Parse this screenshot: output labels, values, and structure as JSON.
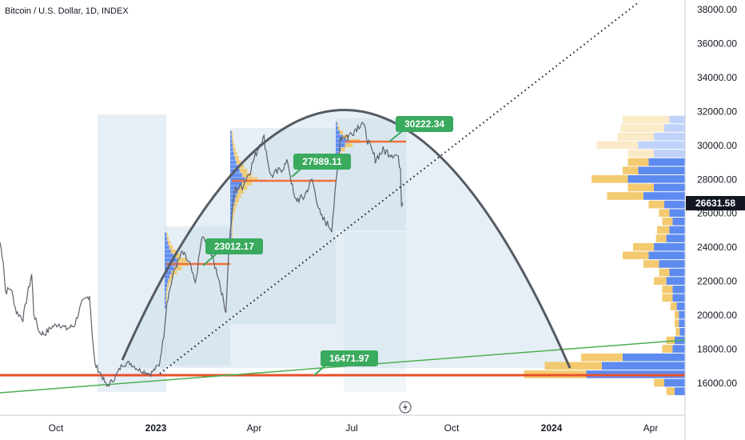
{
  "header": {
    "title": "Bitcoin / U.S. Dollar, 1D, INDEX"
  },
  "colors": {
    "candle": "#5d606b",
    "vp_up": "#f2c45f",
    "vp_down": "#4c7ef0",
    "poc": "#f0703a",
    "callout": "#3aaa5e",
    "trendline": "#4caf50",
    "support": "#e8512a",
    "arc": "#555b63",
    "region": "#c8dce8",
    "price_tag": "#131722"
  },
  "chart_data": {
    "type": "line",
    "title": "Bitcoin / U.S. Dollar, 1D, INDEX",
    "xlabel": "",
    "ylabel": "",
    "x_ticks": [
      "Oct",
      "2023",
      "Apr",
      "Jul",
      "Oct",
      "2024",
      "Apr"
    ],
    "y_ticks": [
      16000,
      18000,
      20000,
      22000,
      24000,
      26000,
      28000,
      30000,
      32000,
      34000,
      36000,
      38000
    ],
    "y_tick_labels": [
      "16000.00",
      "18000.00",
      "20000.00",
      "22000.00",
      "24000.00",
      "26000.00",
      "28000.00",
      "30000.00",
      "32000.00",
      "34000.00",
      "36000.00",
      "38000.00"
    ],
    "ylim": [
      14500,
      38400
    ],
    "current_price": 26631.58,
    "current_price_label": "26631.58",
    "grid": false,
    "series": [
      {
        "values": [
          [
            "2022-08-15",
            24300
          ],
          [
            "2022-08-18",
            23200
          ],
          [
            "2022-08-20",
            21400
          ],
          [
            "2022-08-25",
            21600
          ],
          [
            "2022-08-30",
            20200
          ],
          [
            "2022-09-05",
            19800
          ],
          [
            "2022-09-10",
            21500
          ],
          [
            "2022-09-13",
            22400
          ],
          [
            "2022-09-15",
            20100
          ],
          [
            "2022-09-20",
            19000
          ],
          [
            "2022-09-25",
            18900
          ],
          [
            "2022-10-01",
            19300
          ],
          [
            "2022-10-08",
            19500
          ],
          [
            "2022-10-15",
            19200
          ],
          [
            "2022-10-22",
            19400
          ],
          [
            "2022-10-29",
            20700
          ],
          [
            "2022-11-05",
            21200
          ],
          [
            "2022-11-08",
            18500
          ],
          [
            "2022-11-10",
            17100
          ],
          [
            "2022-11-15",
            16600
          ],
          [
            "2022-11-21",
            15800
          ],
          [
            "2022-11-28",
            16300
          ],
          [
            "2022-12-05",
            17100
          ],
          [
            "2022-12-12",
            17200
          ],
          [
            "2022-12-20",
            16800
          ],
          [
            "2022-12-31",
            16550
          ],
          [
            "2023-01-08",
            17100
          ],
          [
            "2023-01-12",
            18800
          ],
          [
            "2023-01-15",
            20800
          ],
          [
            "2023-01-22",
            22700
          ],
          [
            "2023-01-29",
            23700
          ],
          [
            "2023-02-05",
            23000
          ],
          [
            "2023-02-10",
            21800
          ],
          [
            "2023-02-16",
            24600
          ],
          [
            "2023-02-22",
            24100
          ],
          [
            "2023-03-03",
            22300
          ],
          [
            "2023-03-10",
            20200
          ],
          [
            "2023-03-13",
            24200
          ],
          [
            "2023-03-18",
            27400
          ],
          [
            "2023-03-25",
            27600
          ],
          [
            "2023-04-01",
            28500
          ],
          [
            "2023-04-11",
            30300
          ],
          [
            "2023-04-14",
            30400
          ],
          [
            "2023-04-20",
            28200
          ],
          [
            "2023-04-26",
            28400
          ],
          [
            "2023-05-06",
            29000
          ],
          [
            "2023-05-12",
            26800
          ],
          [
            "2023-05-20",
            26900
          ],
          [
            "2023-05-28",
            28000
          ],
          [
            "2023-06-05",
            25800
          ],
          [
            "2023-06-15",
            25100
          ],
          [
            "2023-06-20",
            28400
          ],
          [
            "2023-06-23",
            30500
          ],
          [
            "2023-07-01",
            30600
          ],
          [
            "2023-07-13",
            31400
          ],
          [
            "2023-07-20",
            29900
          ],
          [
            "2023-07-25",
            29200
          ],
          [
            "2023-08-01",
            29700
          ],
          [
            "2023-08-10",
            29500
          ],
          [
            "2023-08-14",
            29400
          ],
          [
            "2023-08-17",
            28700
          ],
          [
            "2023-08-18",
            26600
          ],
          [
            "2023-08-19",
            26631.58
          ]
        ]
      }
    ],
    "annotations": [
      {
        "label": "30222.34",
        "value": 30222.34
      },
      {
        "label": "27989.11",
        "value": 27989.11
      },
      {
        "label": "23012.17",
        "value": 23012.17
      },
      {
        "label": "16471.97",
        "value": 16471.97
      }
    ]
  }
}
